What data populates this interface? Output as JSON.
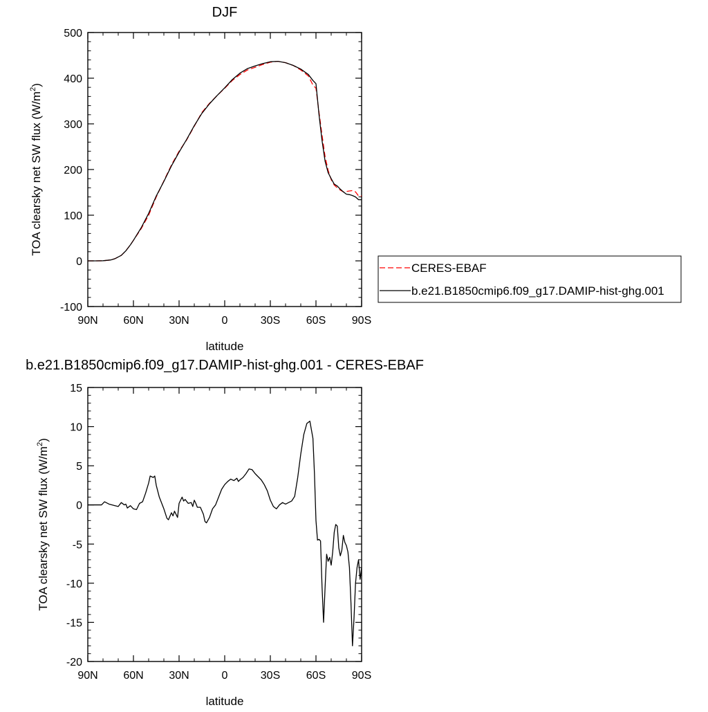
{
  "chart_data": [
    {
      "type": "line",
      "title": "DJF",
      "xlabel": "latitude",
      "ylabel": "TOA clearsky net SW flux (W/m²)",
      "ylabel_main": "TOA clearsky net SW flux (W/m",
      "ylabel_sup": "2",
      "ylabel_close": ")",
      "xlim": [
        90,
        -90
      ],
      "ylim": [
        -100,
        500
      ],
      "x_ticks": [
        90,
        60,
        30,
        0,
        -30,
        -60,
        -90
      ],
      "x_tick_labels": [
        "90N",
        "60N",
        "30N",
        "0",
        "30S",
        "60S",
        "90S"
      ],
      "y_ticks": [
        -100,
        0,
        100,
        200,
        300,
        400,
        500
      ],
      "y_tick_labels": [
        "-100",
        "0",
        "100",
        "200",
        "300",
        "400",
        "500"
      ],
      "grid": false,
      "legend_position": "right",
      "series": [
        {
          "name": "CERES-EBAF",
          "color": "#ff0000",
          "dash": "dashed",
          "x": [
            90,
            85,
            80,
            75,
            72,
            68,
            65,
            62,
            60,
            55,
            50,
            45,
            40,
            35,
            30,
            25,
            20,
            15,
            10,
            5,
            0,
            -5,
            -10,
            -15,
            -20,
            -25,
            -30,
            -35,
            -40,
            -45,
            -50,
            -55,
            -58,
            -60,
            -62,
            -64,
            -66,
            -68,
            -70,
            -72,
            -74,
            -76,
            -78,
            -80,
            -82,
            -84,
            -86,
            -88,
            -90
          ],
          "y": [
            0,
            0,
            0.2,
            2,
            5,
            12,
            22,
            35,
            45,
            70,
            100,
            140,
            175,
            210,
            240,
            265,
            295,
            325,
            345,
            362,
            378,
            395,
            408,
            418,
            424,
            430,
            435,
            437,
            434,
            428,
            418,
            405,
            385,
            378,
            325,
            275,
            228,
            198,
            178,
            166,
            160,
            155,
            151,
            152,
            153,
            154,
            151,
            142,
            142
          ]
        },
        {
          "name": "b.e21.B1850cmip6.f09_g17.DAMIP-hist-ghg.001",
          "color": "#000000",
          "dash": "solid",
          "x": [
            90,
            85,
            80,
            75,
            72,
            68,
            65,
            62,
            60,
            55,
            50,
            45,
            40,
            35,
            30,
            25,
            20,
            15,
            10,
            5,
            0,
            -5,
            -10,
            -15,
            -20,
            -25,
            -30,
            -35,
            -40,
            -45,
            -50,
            -55,
            -58,
            -60,
            -62,
            -64,
            -66,
            -68,
            -70,
            -72,
            -74,
            -76,
            -78,
            -80,
            -82,
            -84,
            -86,
            -88,
            -90
          ],
          "y": [
            0,
            0,
            0.3,
            2,
            5,
            12,
            22,
            35,
            45,
            72,
            104,
            142,
            174,
            208,
            238,
            266,
            296,
            323,
            344,
            362,
            379,
            397,
            411,
            421,
            427,
            432,
            436,
            437,
            434,
            428,
            420,
            408,
            395,
            388,
            320,
            263,
            218,
            193,
            180,
            168,
            164,
            157,
            151,
            146,
            145,
            143,
            140,
            134,
            134
          ]
        }
      ]
    },
    {
      "type": "line",
      "title": "b.e21.B1850cmip6.f09_g17.DAMIP-hist-ghg.001 - CERES-EBAF",
      "xlabel": "latitude",
      "ylabel": "TOA clearsky net SW flux (W/m²)",
      "ylabel_main": "TOA clearsky net SW flux (W/m",
      "ylabel_sup": "2",
      "ylabel_close": ")",
      "xlim": [
        90,
        -90
      ],
      "ylim": [
        -20,
        15
      ],
      "x_ticks": [
        90,
        60,
        30,
        0,
        -30,
        -60,
        -90
      ],
      "x_tick_labels": [
        "90N",
        "60N",
        "30N",
        "0",
        "30S",
        "60S",
        "90S"
      ],
      "y_ticks": [
        -20,
        -15,
        -10,
        -5,
        0,
        5,
        10,
        15
      ],
      "y_tick_labels": [
        "-20",
        "-15",
        "-10",
        "-5",
        "0",
        "5",
        "10",
        "15"
      ],
      "grid": false,
      "series": [
        {
          "color": "#000000",
          "dash": "solid",
          "x": [
            90,
            81,
            79,
            76,
            74,
            70,
            68,
            66,
            65,
            64,
            62,
            60,
            58,
            56,
            54,
            52,
            50,
            49,
            48,
            47,
            46,
            45,
            43,
            40,
            38,
            37,
            35,
            34,
            33,
            31,
            30,
            28,
            27,
            26,
            24,
            22,
            21,
            20,
            19,
            18,
            16,
            14,
            13,
            12,
            10,
            8,
            6,
            4,
            2,
            0,
            -2,
            -4,
            -6,
            -8,
            -9,
            -10,
            -12,
            -14,
            -16,
            -18,
            -20,
            -22,
            -24,
            -26,
            -28,
            -30,
            -32,
            -34,
            -36,
            -38,
            -40,
            -42,
            -44,
            -46,
            -48,
            -50,
            -52,
            -54,
            -56,
            -58,
            -59,
            -60,
            -61,
            -62,
            -63,
            -64,
            -65,
            -66,
            -67,
            -68,
            -69,
            -70,
            -71,
            -72,
            -73,
            -74,
            -75,
            -76,
            -77,
            -78,
            -79,
            -80,
            -81,
            -82,
            -83,
            -84,
            -85,
            -86,
            -87,
            -88,
            -89,
            -90
          ],
          "y": [
            0,
            0,
            0.4,
            0.1,
            0,
            -0.2,
            0.3,
            0,
            0.1,
            -0.4,
            -0.1,
            -0.5,
            -0.6,
            0.2,
            0.4,
            1.5,
            2.8,
            3.7,
            3.6,
            3.5,
            3.7,
            2.5,
            1.0,
            -0.5,
            -1.7,
            -1.9,
            -1.0,
            -1.4,
            -0.8,
            -1.6,
            0.2,
            1.0,
            0.5,
            0.7,
            0.2,
            0.3,
            -0.2,
            0.6,
            0.2,
            -0.3,
            -0.3,
            -1.2,
            -2.1,
            -2.3,
            -1.6,
            -0.5,
            0.0,
            1.0,
            2.0,
            2.6,
            3.0,
            3.3,
            3.1,
            3.4,
            3.0,
            3.2,
            3.5,
            4.0,
            4.6,
            4.5,
            4.0,
            3.6,
            3.2,
            2.6,
            1.8,
            0.6,
            -0.2,
            -0.5,
            0.0,
            0.3,
            0.1,
            0.3,
            0.5,
            1.1,
            3.5,
            6.5,
            9.0,
            10.4,
            10.7,
            8.5,
            4.0,
            -2.0,
            -4.5,
            -4.4,
            -4.6,
            -10.5,
            -15.0,
            -10.5,
            -6.3,
            -7.2,
            -6.7,
            -7.7,
            -6.0,
            -3.5,
            -2.5,
            -2.7,
            -5.5,
            -6.5,
            -5.8,
            -3.9,
            -4.8,
            -5.2,
            -6.0,
            -8.0,
            -12.5,
            -18.0,
            -14.5,
            -10.0,
            -8.0,
            -7.0,
            -9.5,
            -8.0
          ]
        }
      ]
    }
  ]
}
